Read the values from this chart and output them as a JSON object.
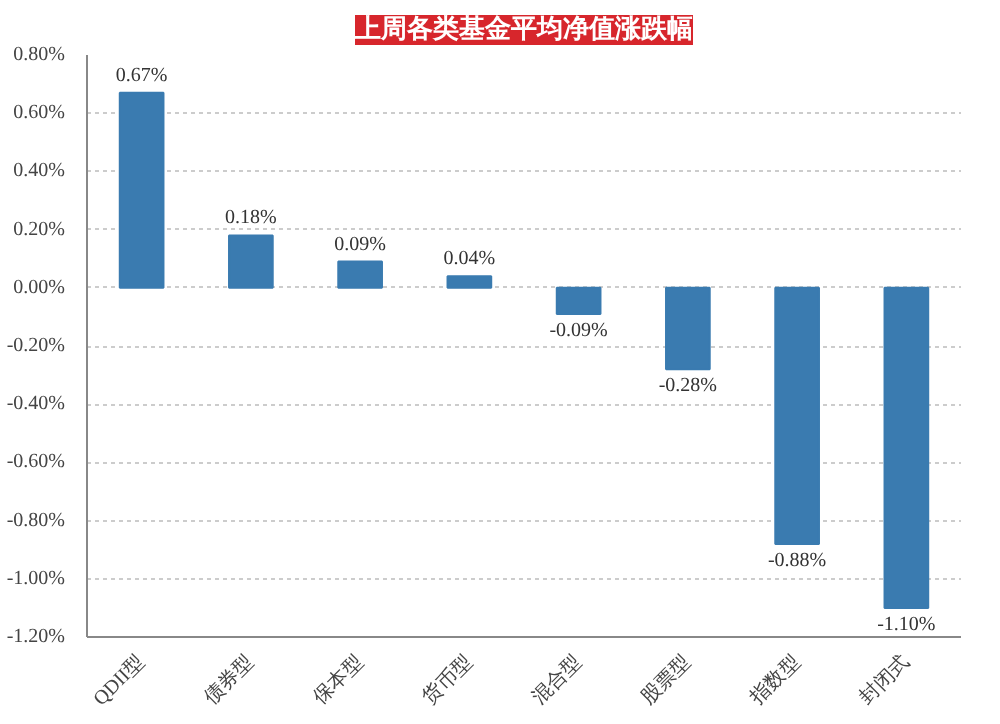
{
  "chart_data": {
    "type": "bar",
    "title": "上周各类基金平均净值涨跌幅",
    "categories": [
      "QDII型",
      "债券型",
      "保本型",
      "货币型",
      "混合型",
      "股票型",
      "指数型",
      "封闭式"
    ],
    "values": [
      0.67,
      0.18,
      0.09,
      0.04,
      -0.09,
      -0.28,
      -0.88,
      -1.1
    ],
    "value_labels": [
      "0.67%",
      "0.18%",
      "0.09%",
      "0.04%",
      "-0.09%",
      "-0.28%",
      "-0.88%",
      "-1.10%"
    ],
    "color": "#3a7bb0",
    "ylim": [
      -1.2,
      0.8
    ],
    "yticks": [
      {
        "value": -1.2,
        "label": "-1.20%"
      },
      {
        "value": -1.0,
        "label": "-1.00%"
      },
      {
        "value": -0.8,
        "label": "-0.80%"
      },
      {
        "value": -0.6,
        "label": "-0.60%"
      },
      {
        "value": -0.4,
        "label": "-0.40%"
      },
      {
        "value": -0.2,
        "label": "-0.20%"
      },
      {
        "value": 0,
        "label": "0.00%"
      },
      {
        "value": 0.2,
        "label": "0.20%"
      },
      {
        "value": 0.4,
        "label": "0.40%"
      },
      {
        "value": 0.6,
        "label": "0.60%"
      },
      {
        "value": 0.8,
        "label": "0.80%"
      }
    ],
    "grid": "y"
  }
}
